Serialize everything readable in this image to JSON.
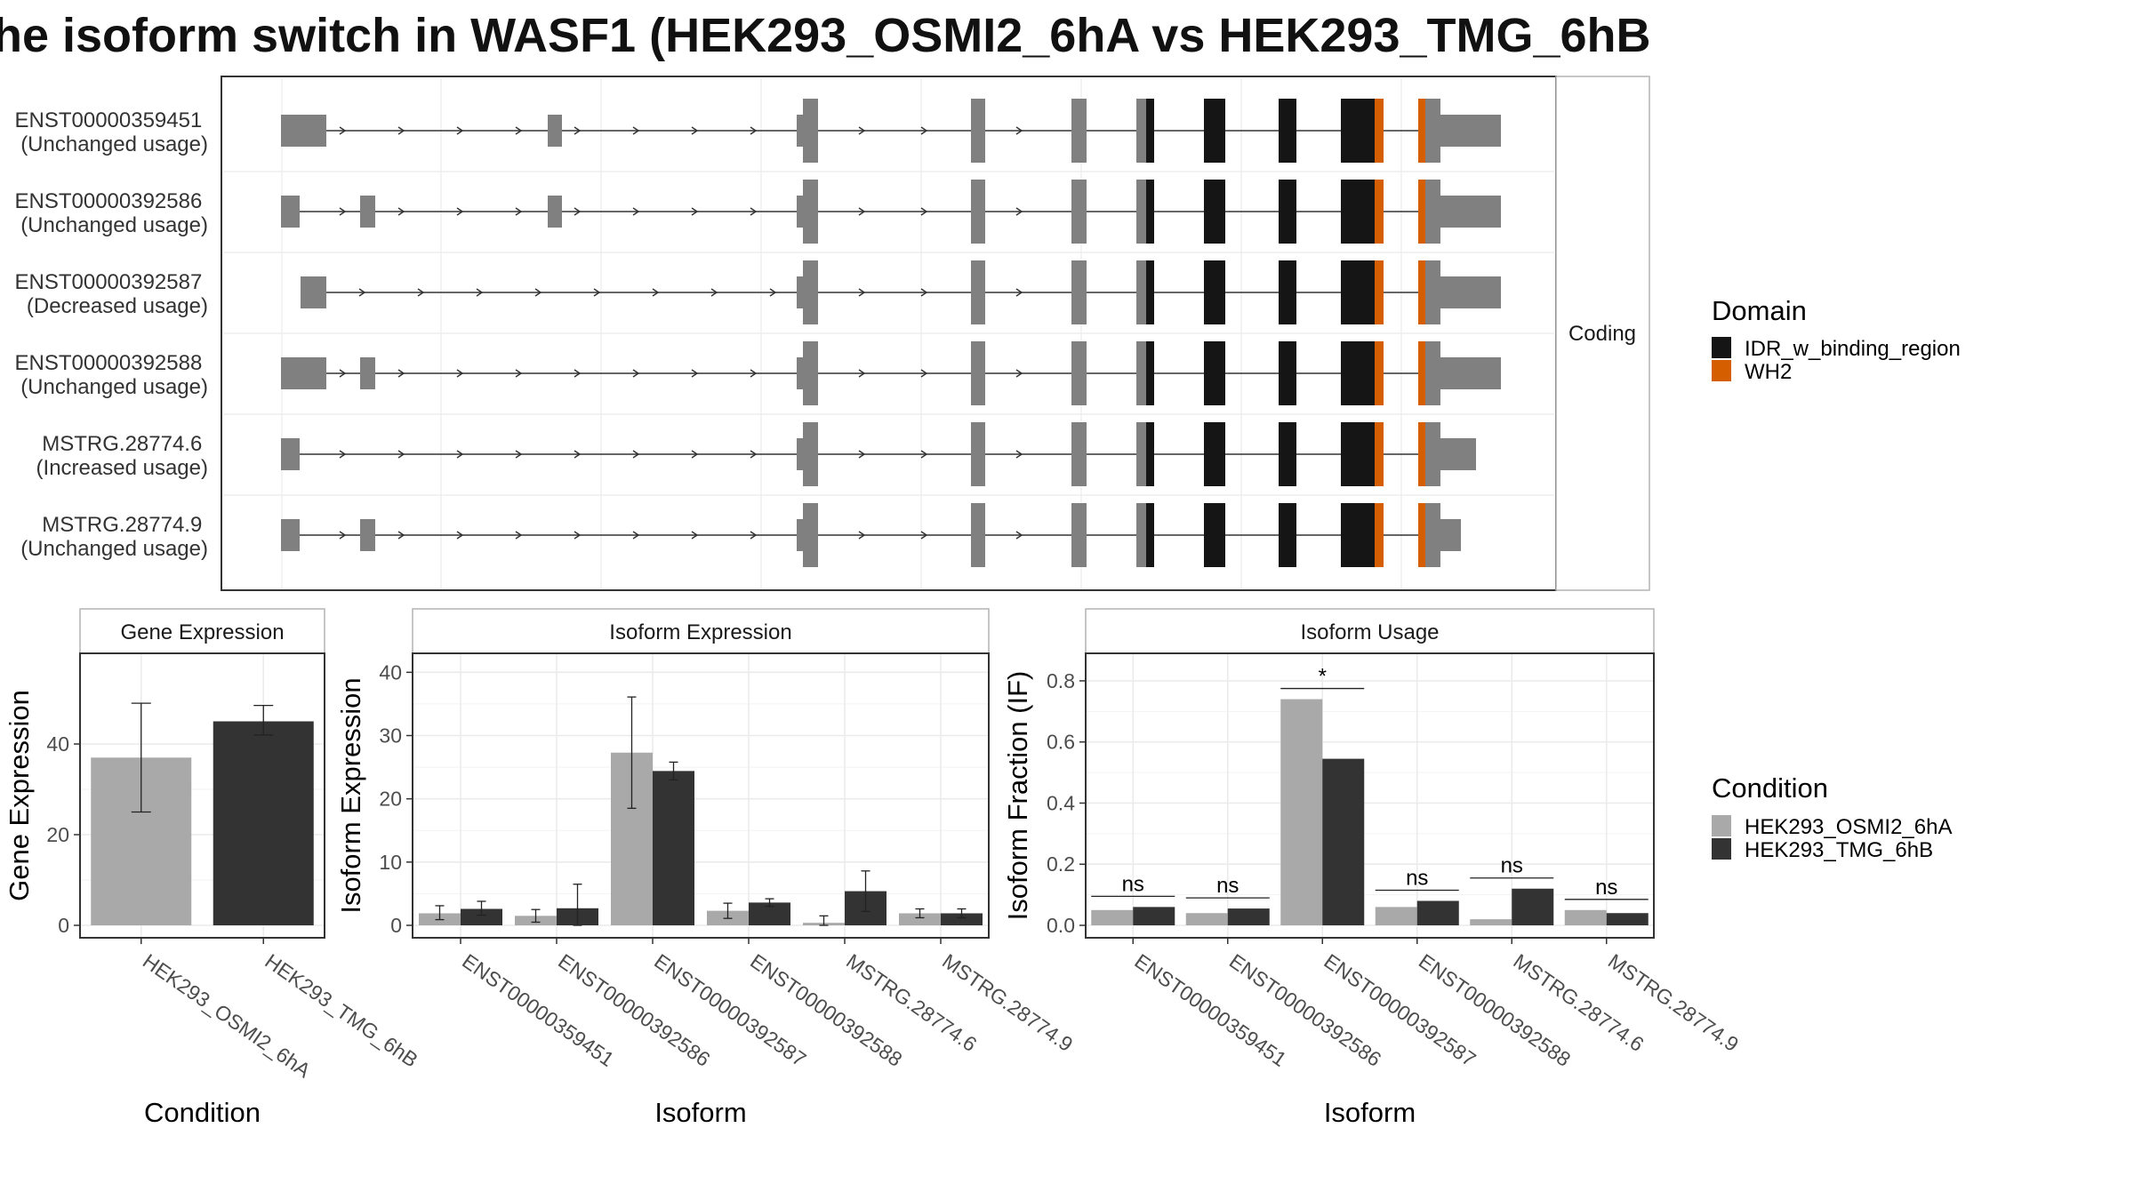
{
  "title": "he isoform switch in WASF1 (HEK293_OSMI2_6hA vs HEK293_TMG_6hB",
  "colors": {
    "idr_domain": "#151515",
    "wh2_domain": "#d55e00",
    "noncoding_exon": "#808080",
    "condition_a": "#a9a9a9",
    "condition_b": "#333333",
    "grid": "#ebebeb",
    "panel_border": "#333333",
    "strip_border": "#b3b3b3"
  },
  "transcript_panel": {
    "strip_label": "Coding",
    "transcripts": [
      {
        "id": "ENST00000359451",
        "usage": "(Unchanged usage)"
      },
      {
        "id": "ENST00000392586",
        "usage": "(Unchanged usage)"
      },
      {
        "id": "ENST00000392587",
        "usage": "(Decreased usage)"
      },
      {
        "id": "ENST00000392588",
        "usage": "(Unchanged usage)"
      },
      {
        "id": "MSTRG.28774.6",
        "usage": "(Increased usage)"
      },
      {
        "id": "MSTRG.28774.9",
        "usage": "(Unchanged usage)"
      }
    ]
  },
  "domain_legend": {
    "title": "Domain",
    "items": [
      {
        "label": "IDR_w_binding_region",
        "color": "#151515"
      },
      {
        "label": "WH2",
        "color": "#d55e00"
      }
    ]
  },
  "condition_legend": {
    "title": "Condition",
    "items": [
      {
        "label": "HEK293_OSMI2_6hA",
        "color": "#a9a9a9"
      },
      {
        "label": "HEK293_TMG_6hB",
        "color": "#333333"
      }
    ]
  },
  "chart_data": [
    {
      "type": "bar",
      "strip": "Gene Expression",
      "xlabel": "Condition",
      "ylabel": "Gene Expression",
      "ylim": [
        0,
        60
      ],
      "yticks": [
        0,
        20,
        40
      ],
      "categories": [
        "HEK293_OSMI2_6hA",
        "HEK293_TMG_6hB"
      ],
      "values": [
        37,
        45
      ],
      "errors": [
        [
          25,
          49
        ],
        [
          42,
          48.5
        ]
      ],
      "colors": [
        "#a9a9a9",
        "#333333"
      ]
    },
    {
      "type": "bar",
      "strip": "Isoform Expression",
      "xlabel": "Isoform",
      "ylabel": "Isoform Expression",
      "ylim": [
        0,
        43
      ],
      "yticks": [
        0,
        10,
        20,
        30,
        40
      ],
      "categories": [
        "ENST00000359451",
        "ENST00000392586",
        "ENST00000392587",
        "ENST00000392588",
        "MSTRG.28774.6",
        "MSTRG.28774.9"
      ],
      "series": [
        {
          "name": "HEK293_OSMI2_6hA",
          "values": [
            1.9,
            1.5,
            27.3,
            2.3,
            0.4,
            1.9
          ],
          "errors": [
            [
              0.9,
              3.1
            ],
            [
              0.5,
              2.5
            ],
            [
              18.5,
              36.1
            ],
            [
              1.1,
              3.5
            ],
            [
              0,
              1.5
            ],
            [
              1.2,
              2.6
            ]
          ]
        },
        {
          "name": "HEK293_TMG_6hB",
          "values": [
            2.6,
            2.7,
            24.4,
            3.6,
            5.4,
            1.9
          ],
          "errors": [
            [
              1.6,
              3.8
            ],
            [
              0,
              6.5
            ],
            [
              23.0,
              25.8
            ],
            [
              3.0,
              4.2
            ],
            [
              2.2,
              8.6
            ],
            [
              1.2,
              2.6
            ]
          ]
        }
      ]
    },
    {
      "type": "bar",
      "strip": "Isoform Usage",
      "xlabel": "Isoform",
      "ylabel": "Isoform Fraction (IF)",
      "ylim": [
        0,
        0.89
      ],
      "yticks": [
        "0.0",
        "0.2",
        "0.4",
        "0.6",
        "0.8"
      ],
      "categories": [
        "ENST00000359451",
        "ENST00000392586",
        "ENST00000392587",
        "ENST00000392588",
        "MSTRG.28774.6",
        "MSTRG.28774.9"
      ],
      "series": [
        {
          "name": "HEK293_OSMI2_6hA",
          "values": [
            0.05,
            0.04,
            0.74,
            0.06,
            0.02,
            0.05
          ]
        },
        {
          "name": "HEK293_TMG_6hB",
          "values": [
            0.06,
            0.055,
            0.545,
            0.08,
            0.12,
            0.04
          ]
        }
      ],
      "significance": [
        "ns",
        "ns",
        "*",
        "ns",
        "ns",
        "ns"
      ]
    }
  ]
}
